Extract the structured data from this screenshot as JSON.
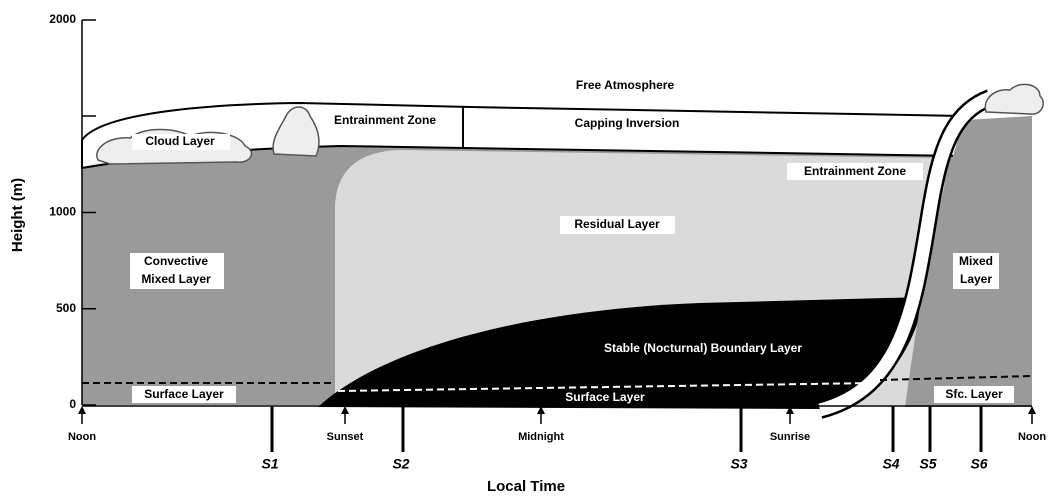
{
  "axes": {
    "y_label": "Height (m)",
    "x_label": "Local Time",
    "y_ticks": [
      0,
      500,
      1000,
      2000
    ]
  },
  "time_markers": [
    "Noon",
    "Sunset",
    "Midnight",
    "Sunrise",
    "Noon"
  ],
  "stations": [
    "S1",
    "S2",
    "S3",
    "S4",
    "S5",
    "S6"
  ],
  "regions": {
    "free_atmosphere": "Free Atmosphere",
    "capping_inversion": "Capping Inversion",
    "entrainment_zone_day": "Entrainment Zone",
    "cloud_layer": "Cloud Layer",
    "entrainment_zone_morning": "Entrainment Zone",
    "residual_layer": "Residual Layer",
    "convective_mixed_layer": [
      "Convective",
      "Mixed Layer"
    ],
    "mixed_layer": [
      "Mixed",
      "Layer"
    ],
    "stable_boundary_layer": "Stable (Nocturnal) Boundary Layer",
    "surface_layer_day": "Surface Layer",
    "surface_layer_night": "Surface Layer",
    "surface_layer_next": "Sfc. Layer"
  }
}
